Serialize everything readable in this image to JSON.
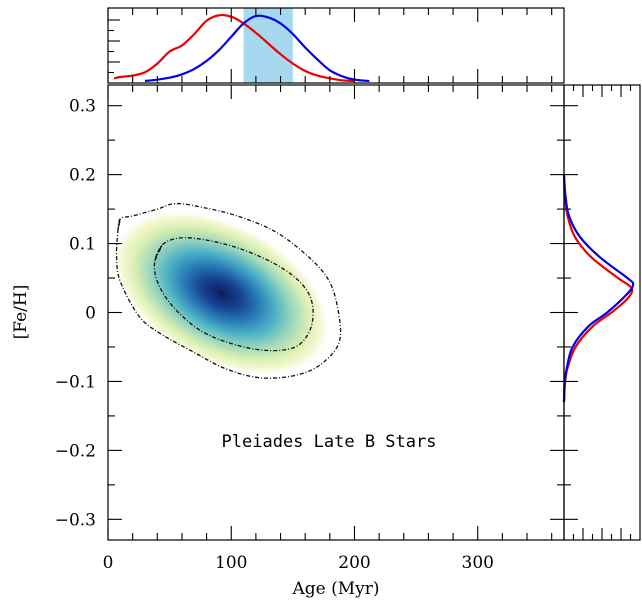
{
  "chart_data": {
    "type": "scatter",
    "annotation": "Pleiades Late B Stars",
    "xlabel": "Age (Myr)",
    "ylabel": "[Fe/H]",
    "xlim": [
      0,
      370
    ],
    "ylim": [
      -0.33,
      0.33
    ],
    "x_ticks": [
      0,
      100,
      200,
      300
    ],
    "y_ticks": [
      0.3,
      0.2,
      0.1,
      0,
      -0.1,
      -0.2,
      -0.3
    ],
    "x_tick_labels": [
      "0",
      "100",
      "200",
      "300"
    ],
    "y_tick_labels": [
      "0.3",
      "0.2",
      "0.1",
      "0",
      "−0.1",
      "−0.2",
      "−0.3"
    ],
    "density": {
      "peak": [
        92,
        0.028
      ],
      "inner_contour": [
        [
          38,
          0.075
        ],
        [
          44,
          0.098
        ],
        [
          58,
          0.108
        ],
        [
          80,
          0.105
        ],
        [
          108,
          0.092
        ],
        [
          138,
          0.068
        ],
        [
          158,
          0.04
        ],
        [
          166,
          0.01
        ],
        [
          164,
          -0.025
        ],
        [
          152,
          -0.05
        ],
        [
          128,
          -0.055
        ],
        [
          100,
          -0.045
        ],
        [
          74,
          -0.025
        ],
        [
          52,
          0.01
        ],
        [
          40,
          0.045
        ]
      ],
      "outer_contour": [
        [
          8,
          0.118
        ],
        [
          10,
          0.136
        ],
        [
          20,
          0.14
        ],
        [
          40,
          0.15
        ],
        [
          55,
          0.158
        ],
        [
          78,
          0.152
        ],
        [
          105,
          0.14
        ],
        [
          135,
          0.118
        ],
        [
          160,
          0.085
        ],
        [
          178,
          0.05
        ],
        [
          186,
          0.01
        ],
        [
          188,
          -0.04
        ],
        [
          175,
          -0.072
        ],
        [
          155,
          -0.09
        ],
        [
          125,
          -0.095
        ],
        [
          96,
          -0.082
        ],
        [
          70,
          -0.058
        ],
        [
          42,
          -0.03
        ],
        [
          25,
          -0.005
        ],
        [
          10,
          0.045
        ],
        [
          7,
          0.08
        ]
      ]
    },
    "color_highlight": "#a6d9f0",
    "age_band": [
      110,
      150
    ],
    "series": [
      {
        "color": "#ee0000",
        "age_x": [
          5,
          10,
          20,
          30,
          40,
          50,
          60,
          70,
          80,
          90,
          100,
          110,
          120,
          130,
          140,
          150,
          160,
          170,
          180,
          190,
          200
        ],
        "age_y": [
          0.04,
          0.06,
          0.08,
          0.13,
          0.26,
          0.44,
          0.53,
          0.7,
          0.9,
          0.98,
          0.96,
          0.86,
          0.72,
          0.56,
          0.4,
          0.26,
          0.15,
          0.08,
          0.04,
          0.01,
          0.0
        ],
        "feh_y": [
          0.2,
          0.17,
          0.14,
          0.11,
          0.08,
          0.05,
          0.035,
          0.02,
          0.0,
          -0.02,
          -0.05,
          -0.08,
          -0.1,
          -0.13
        ],
        "feh_x": [
          0.0,
          0.01,
          0.05,
          0.15,
          0.38,
          0.75,
          0.94,
          0.88,
          0.66,
          0.4,
          0.16,
          0.05,
          0.015,
          0.0
        ]
      },
      {
        "color": "#0000ee",
        "age_x": [
          30,
          40,
          50,
          60,
          70,
          80,
          90,
          100,
          110,
          120,
          130,
          140,
          150,
          160,
          170,
          180,
          190,
          200,
          212
        ],
        "age_y": [
          0.0,
          0.02,
          0.05,
          0.1,
          0.18,
          0.3,
          0.46,
          0.66,
          0.86,
          0.97,
          0.95,
          0.86,
          0.7,
          0.5,
          0.32,
          0.16,
          0.07,
          0.02,
          0.0
        ],
        "feh_y": [
          0.2,
          0.17,
          0.14,
          0.11,
          0.08,
          0.05,
          0.04,
          0.025,
          0.0,
          -0.02,
          -0.05,
          -0.08,
          -0.1,
          -0.13
        ],
        "feh_x": [
          0.0,
          0.02,
          0.07,
          0.22,
          0.5,
          0.88,
          0.96,
          0.86,
          0.6,
          0.34,
          0.12,
          0.04,
          0.01,
          0.0
        ]
      }
    ],
    "grid": false
  }
}
